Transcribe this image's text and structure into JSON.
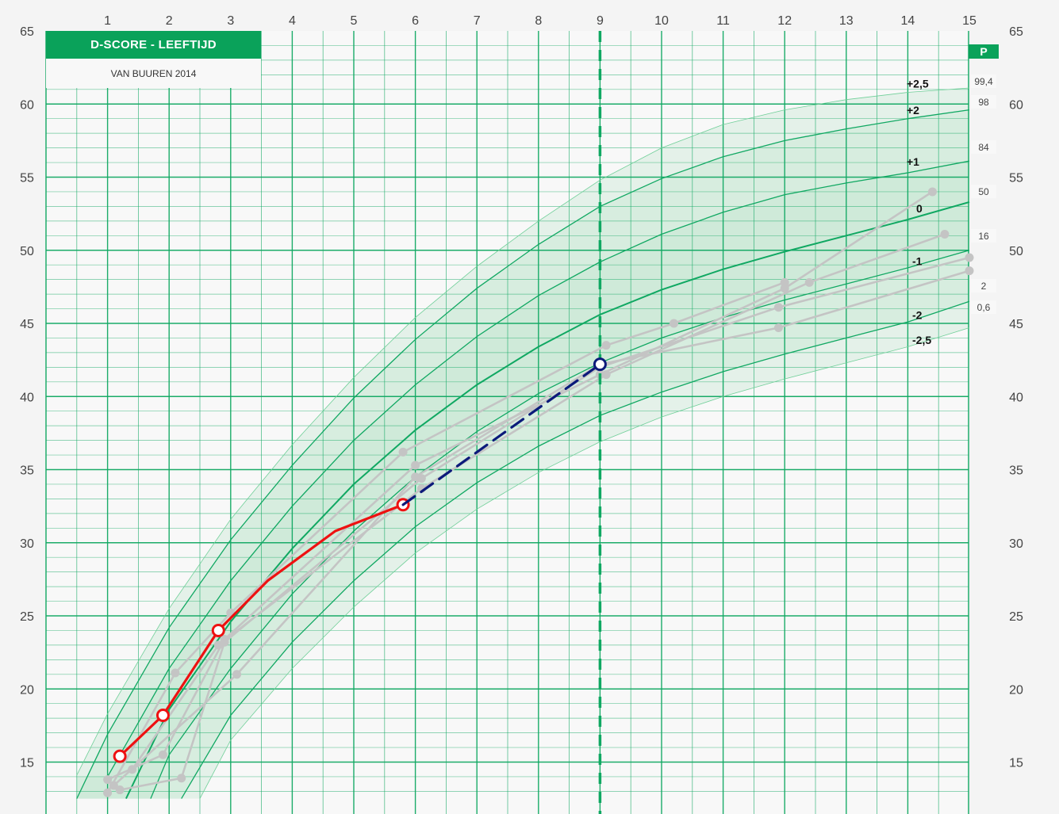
{
  "header": {
    "title": "D-SCORE - LEEFTIJD",
    "subtitle": "VAN BUUREN 2014",
    "percentile_header": "P"
  },
  "colors": {
    "grid": "#10a862",
    "band": "#bfe6cf",
    "child": "#ee1111",
    "prediction": "#0b1a7a",
    "reference": "#c4c4c4",
    "marker": "#10a862"
  },
  "chart_data": {
    "type": "line",
    "title": "D-SCORE - LEEFTIJD",
    "subtitle": "VAN BUUREN 2014",
    "xlim": [
      0,
      15
    ],
    "ylim": [
      12.5,
      65
    ],
    "x_ticks": [
      "1",
      "2",
      "3",
      "4",
      "5",
      "6",
      "7",
      "8",
      "9",
      "10",
      "11",
      "12",
      "13",
      "14",
      "15"
    ],
    "y_ticks": [
      "15",
      "20",
      "25",
      "30",
      "35",
      "40",
      "45",
      "50",
      "55",
      "60",
      "65"
    ],
    "marker_x": 9,
    "reference_curves": [
      {
        "z": 2.5,
        "label": "+2,5",
        "percentile": "99,4",
        "points": [
          [
            0.5,
            14.1
          ],
          [
            1,
            18.3
          ],
          [
            2,
            25.5
          ],
          [
            3,
            31.6
          ],
          [
            4,
            36.7
          ],
          [
            5,
            41.3
          ],
          [
            6,
            45.4
          ],
          [
            7,
            48.9
          ],
          [
            8,
            52
          ],
          [
            9,
            54.8
          ],
          [
            10,
            57.0
          ],
          [
            11,
            58.6
          ],
          [
            12,
            59.6
          ],
          [
            13,
            60.3
          ],
          [
            14,
            60.8
          ],
          [
            15,
            61.1
          ]
        ]
      },
      {
        "z": 2,
        "label": "+2",
        "percentile": "98",
        "points": [
          [
            0.5,
            12.5
          ],
          [
            1,
            16.9
          ],
          [
            2,
            24.2
          ],
          [
            3,
            30.2
          ],
          [
            4,
            35.3
          ],
          [
            5,
            39.9
          ],
          [
            6,
            43.9
          ],
          [
            7,
            47.4
          ],
          [
            8,
            50.4
          ],
          [
            9,
            53.0
          ],
          [
            10,
            54.9
          ],
          [
            11,
            56.4
          ],
          [
            12,
            57.5
          ],
          [
            13,
            58.3
          ],
          [
            14,
            59.0
          ],
          [
            15,
            59.6
          ]
        ]
      },
      {
        "z": 1,
        "label": "+1",
        "percentile": "84",
        "points": [
          [
            1,
            14.0
          ],
          [
            2,
            21.4
          ],
          [
            3,
            27.4
          ],
          [
            4,
            32.5
          ],
          [
            5,
            37.0
          ],
          [
            6,
            40.8
          ],
          [
            7,
            44.1
          ],
          [
            8,
            46.9
          ],
          [
            9,
            49.2
          ],
          [
            10,
            51.1
          ],
          [
            11,
            52.6
          ],
          [
            12,
            53.8
          ],
          [
            13,
            54.6
          ],
          [
            14,
            55.3
          ],
          [
            15,
            56.1
          ]
        ]
      },
      {
        "z": 0,
        "label": "0",
        "percentile": "50",
        "points": [
          [
            1.3,
            12.5
          ],
          [
            2,
            18.6
          ],
          [
            3,
            24.6
          ],
          [
            4,
            29.6
          ],
          [
            5,
            34.0
          ],
          [
            6,
            37.7
          ],
          [
            7,
            40.8
          ],
          [
            8,
            43.4
          ],
          [
            9,
            45.6
          ],
          [
            10,
            47.3
          ],
          [
            11,
            48.7
          ],
          [
            12,
            49.9
          ],
          [
            13,
            51.0
          ],
          [
            14,
            52.1
          ],
          [
            15,
            53.3
          ]
        ]
      },
      {
        "z": -1,
        "label": "-1",
        "percentile": "16",
        "points": [
          [
            1.7,
            12.5
          ],
          [
            2,
            15.5
          ],
          [
            3,
            21.4
          ],
          [
            4,
            26.5
          ],
          [
            5,
            30.8
          ],
          [
            6,
            34.5
          ],
          [
            7,
            37.6
          ],
          [
            8,
            40.2
          ],
          [
            9,
            42.3
          ],
          [
            10,
            44.0
          ],
          [
            11,
            45.4
          ],
          [
            12,
            46.6
          ],
          [
            13,
            47.7
          ],
          [
            14,
            48.8
          ],
          [
            15,
            50.0
          ]
        ]
      },
      {
        "z": -2,
        "label": "-2",
        "percentile": "2",
        "points": [
          [
            2.2,
            12.5
          ],
          [
            3,
            18.2
          ],
          [
            4,
            23.2
          ],
          [
            5,
            27.4
          ],
          [
            6,
            31.1
          ],
          [
            7,
            34.1
          ],
          [
            8,
            36.6
          ],
          [
            9,
            38.7
          ],
          [
            10,
            40.3
          ],
          [
            11,
            41.7
          ],
          [
            12,
            42.9
          ],
          [
            13,
            44.0
          ],
          [
            14,
            45.1
          ],
          [
            15,
            46.5
          ]
        ]
      },
      {
        "z": -2.5,
        "label": "-2,5",
        "percentile": "0,6",
        "points": [
          [
            2.5,
            12.5
          ],
          [
            3,
            16.5
          ],
          [
            4,
            21.4
          ],
          [
            5,
            25.6
          ],
          [
            6,
            29.3
          ],
          [
            7,
            32.3
          ],
          [
            8,
            34.8
          ],
          [
            9,
            36.9
          ],
          [
            10,
            38.6
          ],
          [
            11,
            40.0
          ],
          [
            12,
            41.2
          ],
          [
            13,
            42.3
          ],
          [
            14,
            43.4
          ],
          [
            15,
            44.7
          ]
        ]
      }
    ],
    "series": [
      {
        "name": "child",
        "style": "solid",
        "points": [
          [
            1.2,
            15.4
          ],
          [
            1.9,
            18.2
          ],
          [
            2.8,
            24.0
          ],
          [
            3.6,
            27.4
          ],
          [
            4.7,
            30.8
          ],
          [
            5.8,
            32.6
          ]
        ],
        "markers": [
          0,
          1,
          2,
          5
        ]
      },
      {
        "name": "prediction",
        "style": "dashed",
        "points": [
          [
            5.8,
            32.6
          ],
          [
            9.0,
            42.2
          ]
        ],
        "markers": [
          1
        ]
      }
    ],
    "other_children": [
      [
        [
          1.0,
          12.9
        ],
        [
          2.1,
          21.1
        ],
        [
          3.0,
          25.2
        ],
        [
          5.8,
          36.2
        ],
        [
          9.1,
          43.5
        ],
        [
          10.2,
          45.0
        ],
        [
          12.0,
          47.8
        ]
      ],
      [
        [
          1.0,
          13.8
        ],
        [
          1.9,
          15.5
        ],
        [
          2.9,
          23.4
        ],
        [
          6.0,
          35.3
        ],
        [
          9.0,
          41.5
        ],
        [
          12.0,
          47.4
        ],
        [
          14.4,
          54.0
        ]
      ],
      [
        [
          1.2,
          13.1
        ],
        [
          2.2,
          13.9
        ],
        [
          2.9,
          23.2
        ],
        [
          6.1,
          34.4
        ],
        [
          9.0,
          42.0
        ],
        [
          11.9,
          46.1
        ],
        [
          15.0,
          49.5
        ]
      ],
      [
        [
          1.4,
          14.5
        ],
        [
          2.8,
          23.0
        ],
        [
          6.1,
          33.7
        ],
        [
          9.1,
          41.5
        ],
        [
          12.4,
          47.8
        ],
        [
          14.6,
          51.1
        ]
      ],
      [
        [
          1.1,
          13.4
        ],
        [
          3.1,
          21.0
        ],
        [
          6.0,
          34.5
        ],
        [
          9.0,
          42.2
        ],
        [
          11.9,
          44.7
        ],
        [
          15.0,
          48.6
        ]
      ]
    ]
  }
}
